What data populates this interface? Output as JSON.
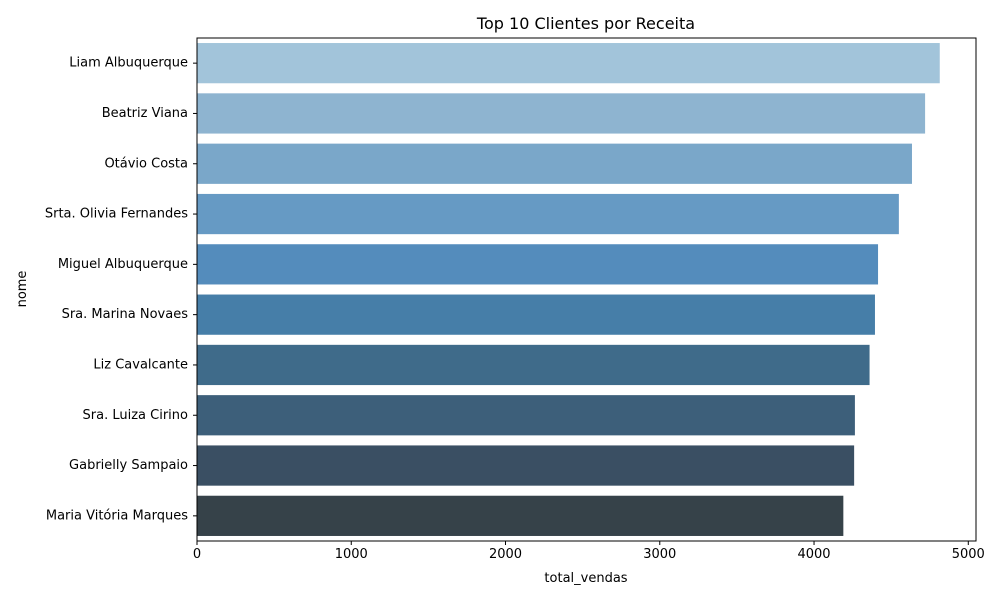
{
  "chart_data": {
    "type": "bar",
    "orientation": "horizontal",
    "title": "Top 10 Clientes por Receita",
    "xlabel": "total_vendas",
    "ylabel": "nome",
    "xlim": [
      0,
      5050
    ],
    "xticks": [
      0,
      1000,
      2000,
      3000,
      4000,
      5000
    ],
    "grid": false,
    "categories": [
      "Liam Albuquerque",
      "Beatriz Viana",
      "Otávio Costa",
      "Srta. Olivia Fernandes",
      "Miguel Albuquerque",
      "Sra. Marina Novaes",
      "Liz Cavalcante",
      "Sra. Luiza Cirino",
      "Gabrielly Sampaio",
      "Maria Vitória Marques"
    ],
    "values": [
      4815,
      4720,
      4635,
      4550,
      4415,
      4395,
      4360,
      4265,
      4260,
      4190
    ],
    "colors": [
      "#a2c4da",
      "#8eb4d0",
      "#7aa7c9",
      "#669ac4",
      "#548cbc",
      "#467ea8",
      "#3f6b8a",
      "#3d5f7a",
      "#3a4f63",
      "#364249"
    ]
  }
}
